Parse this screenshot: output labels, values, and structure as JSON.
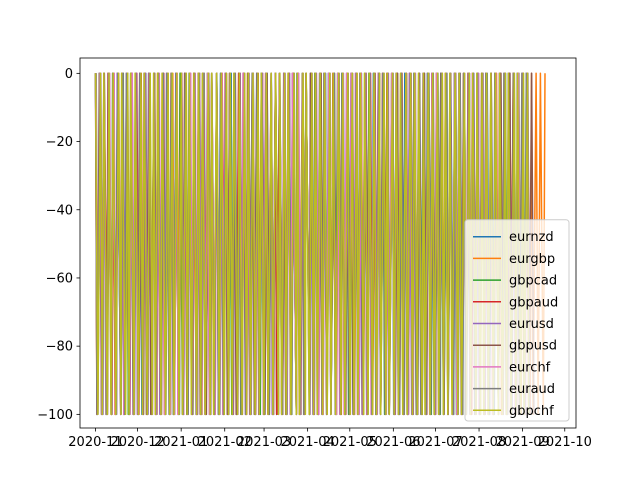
{
  "chart_data": {
    "type": "line",
    "title": "",
    "xlabel": "",
    "ylabel": "",
    "ylim": [
      -104,
      4.5
    ],
    "xlim": [
      "2020-10-21",
      "2021-10-09"
    ],
    "yticks": [
      0,
      -20,
      -40,
      -60,
      -80,
      -100
    ],
    "ytick_labels": [
      "0",
      "−20",
      "−40",
      "−60",
      "−80",
      "−100"
    ],
    "xticks": [
      "2020-11-01",
      "2020-12-01",
      "2021-01-01",
      "2021-02-01",
      "2021-03-01",
      "2021-04-01",
      "2021-05-01",
      "2021-06-01",
      "2021-07-01",
      "2021-08-01",
      "2021-09-01",
      "2021-10-01"
    ],
    "xtick_labels": [
      "2020-11",
      "2020-12",
      "2021-01",
      "2021-02",
      "2021-03",
      "2021-04",
      "2021-05",
      "2021-06",
      "2021-07",
      "2021-08",
      "2021-09",
      "2021-10"
    ],
    "value_range": [
      -100,
      0
    ],
    "legend_position": "lower-right",
    "series": [
      {
        "name": "eurnzd",
        "color": "#1f77b4",
        "start": "2020-11-01",
        "end": "2021-09-06",
        "freq_days": 1.6
      },
      {
        "name": "eurgbp",
        "color": "#ff7f0e",
        "start": "2020-11-01",
        "end": "2021-09-18",
        "freq_days": 1.6
      },
      {
        "name": "gbpcad",
        "color": "#2ca02c",
        "start": "2020-11-01",
        "end": "2021-09-06",
        "freq_days": 1.6
      },
      {
        "name": "gbpaud",
        "color": "#d62728",
        "start": "2020-11-01",
        "end": "2021-09-06",
        "freq_days": 1.6
      },
      {
        "name": "eurusd",
        "color": "#9467bd",
        "start": "2020-11-01",
        "end": "2021-09-06",
        "freq_days": 1.6
      },
      {
        "name": "gbpusd",
        "color": "#8c564b",
        "start": "2020-11-01",
        "end": "2021-09-10",
        "freq_days": 1.6
      },
      {
        "name": "eurchf",
        "color": "#e377c2",
        "start": "2020-11-01",
        "end": "2021-09-06",
        "freq_days": 1.6
      },
      {
        "name": "euraud",
        "color": "#7f7f7f",
        "start": "2020-11-01",
        "end": "2021-09-06",
        "freq_days": 1.6
      },
      {
        "name": "gbpchf",
        "color": "#bcbd22",
        "start": "2020-11-01",
        "end": "2021-09-06",
        "freq_days": 1.6
      }
    ]
  }
}
